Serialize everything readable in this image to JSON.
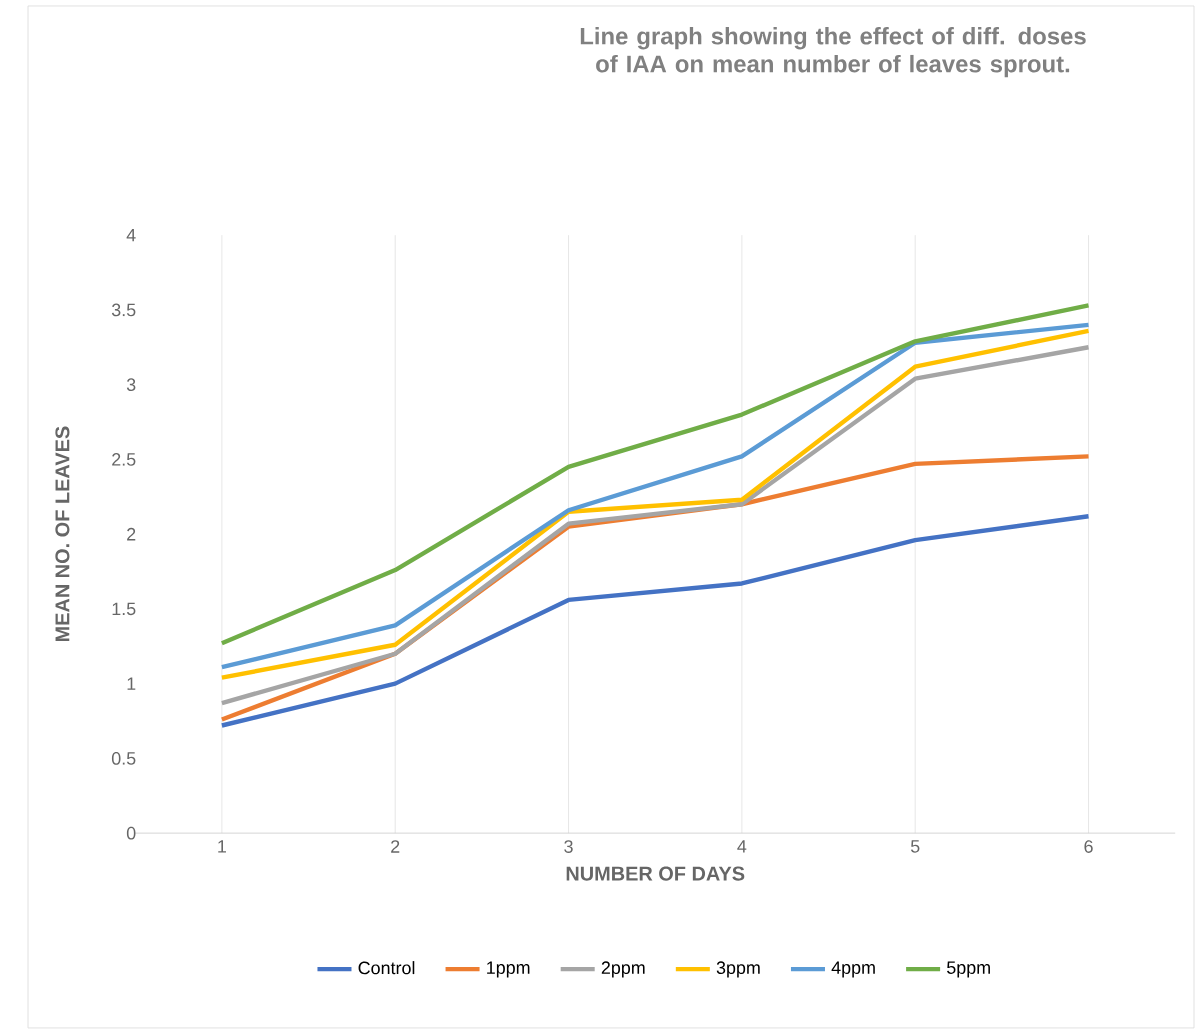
{
  "chart_data": {
    "type": "line",
    "title": "Line graph  showing  the effect of diff. doses of IAA on mean number  of leaves sprout.",
    "xlabel": "NUMBER OF DAYS",
    "ylabel": "MEAN NO. OF LEAVES",
    "categories": [
      "1",
      "2",
      "3",
      "4",
      "5",
      "6"
    ],
    "ylim": [
      0,
      4
    ],
    "yticks": [
      0,
      0.5,
      1,
      1.5,
      2,
      2.5,
      3,
      3.5,
      4
    ],
    "grid": "x",
    "legend": "bottom",
    "marker": "none",
    "line_style": "solid",
    "series": [
      {
        "name": "Control",
        "color": "#4472c4",
        "values": [
          0.72,
          1.0,
          1.56,
          1.67,
          1.96,
          2.12
        ]
      },
      {
        "name": "1ppm",
        "color": "#ed7d31",
        "values": [
          0.76,
          1.2,
          2.05,
          2.2,
          2.47,
          2.52
        ]
      },
      {
        "name": "2ppm",
        "color": "#a5a5a5",
        "values": [
          0.87,
          1.2,
          2.07,
          2.2,
          3.04,
          3.25
        ]
      },
      {
        "name": "3ppm",
        "color": "#ffc000",
        "values": [
          1.04,
          1.26,
          2.15,
          2.23,
          3.12,
          3.36
        ]
      },
      {
        "name": "4ppm",
        "color": "#5b9bd5",
        "values": [
          1.11,
          1.39,
          2.16,
          2.52,
          3.28,
          3.4
        ]
      },
      {
        "name": "5ppm",
        "color": "#70ad47",
        "values": [
          1.27,
          1.76,
          2.45,
          2.8,
          3.29,
          3.53
        ]
      }
    ]
  }
}
